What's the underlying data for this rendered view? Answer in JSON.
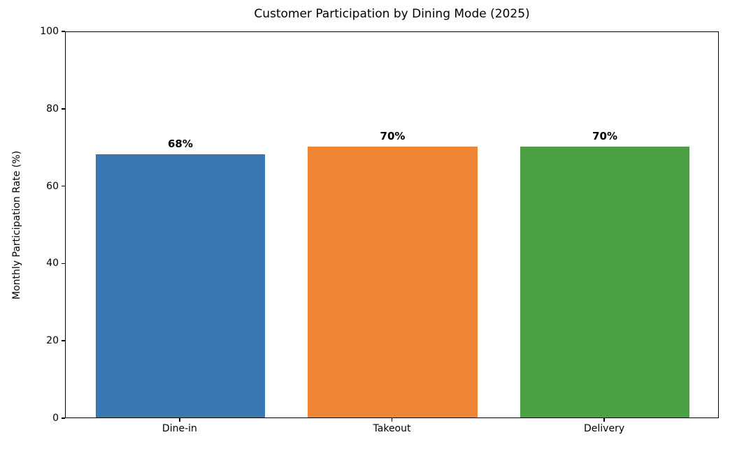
{
  "chart_data": {
    "type": "bar",
    "title": "Customer Participation by Dining Mode (2025)",
    "xlabel": "",
    "ylabel": "Monthly Participation Rate (%)",
    "categories": [
      "Dine-in",
      "Takeout",
      "Delivery"
    ],
    "values": [
      68,
      70,
      70
    ],
    "bar_labels": [
      "68%",
      "70%",
      "70%"
    ],
    "colors": [
      "#3A76AF",
      "#EF8636",
      "#4BA043"
    ],
    "ylim": [
      0,
      100
    ],
    "yticks": [
      0,
      20,
      40,
      60,
      80,
      100
    ],
    "xlim": [
      -0.54,
      2.54
    ],
    "bar_width": 0.8,
    "grid": false,
    "legend": "none",
    "spines": "full-box"
  }
}
